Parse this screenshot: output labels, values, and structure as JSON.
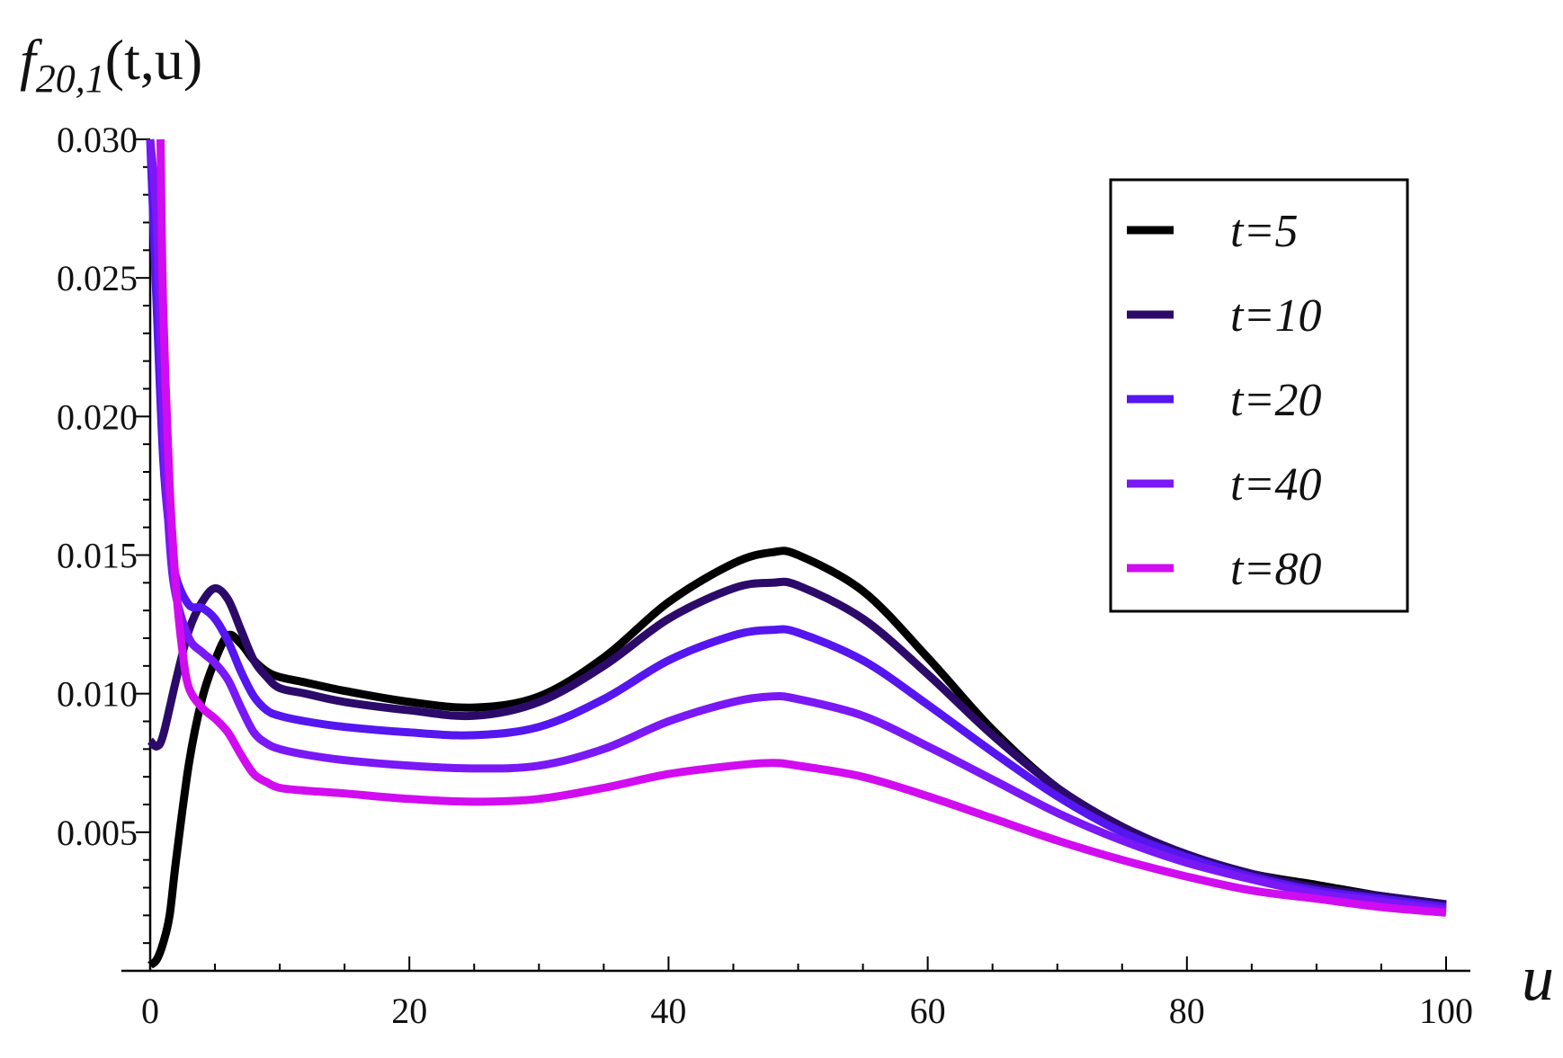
{
  "chart_data": {
    "type": "line",
    "title": "",
    "ylabel": "f20,1(t,u)",
    "ylabel_parts": {
      "base": "f",
      "sub": "20,1",
      "args": "(t,u)"
    },
    "xlabel": "u",
    "xlim": [
      0,
      100
    ],
    "ylim": [
      0,
      0.03
    ],
    "x_ticks": [
      0,
      20,
      40,
      60,
      80,
      100
    ],
    "x_tick_labels": [
      "0",
      "20",
      "40",
      "60",
      "80",
      "100"
    ],
    "y_ticks": [
      0.005,
      0.01,
      0.015,
      0.02,
      0.025,
      0.03
    ],
    "y_tick_labels": [
      "0.005",
      "0.010",
      "0.015",
      "0.020",
      "0.025",
      "0.030"
    ],
    "legend_position": "top-right",
    "series": [
      {
        "name": "t=5",
        "color": "#000000",
        "x": [
          0,
          0.5,
          1,
          1.5,
          2,
          3,
          4,
          5,
          6,
          7,
          8,
          9,
          10,
          12,
          15,
          20,
          25,
          30,
          35,
          40,
          45,
          48,
          50,
          55,
          60,
          65,
          70,
          75,
          80,
          85,
          90,
          95,
          100
        ],
        "y": [
          0.0002,
          0.0004,
          0.001,
          0.002,
          0.004,
          0.0075,
          0.0098,
          0.0112,
          0.0121,
          0.0118,
          0.0112,
          0.0108,
          0.0106,
          0.0104,
          0.0101,
          0.0097,
          0.0095,
          0.0099,
          0.0113,
          0.0133,
          0.0147,
          0.0151,
          0.015,
          0.0137,
          0.0113,
          0.0087,
          0.0066,
          0.0052,
          0.0042,
          0.0035,
          0.0031,
          0.0027,
          0.0024
        ]
      },
      {
        "name": "t=10",
        "color": "#2c0a6a",
        "x": [
          0,
          0.5,
          1,
          2,
          3,
          4,
          5,
          6,
          7,
          8,
          9,
          10,
          12,
          15,
          20,
          25,
          30,
          35,
          40,
          45,
          48,
          50,
          55,
          60,
          65,
          70,
          75,
          80,
          85,
          90,
          95,
          100
        ],
        "y": [
          0.0083,
          0.0081,
          0.0085,
          0.0105,
          0.0123,
          0.0133,
          0.0138,
          0.0134,
          0.0123,
          0.0112,
          0.0106,
          0.0102,
          0.01,
          0.0097,
          0.0094,
          0.0092,
          0.0097,
          0.011,
          0.0127,
          0.0138,
          0.014,
          0.0139,
          0.0127,
          0.0107,
          0.0085,
          0.0066,
          0.0052,
          0.0042,
          0.0035,
          0.003,
          0.0027,
          0.0024
        ]
      },
      {
        "name": "t=20",
        "color": "#5516f0",
        "x": [
          0,
          0.5,
          1,
          1.5,
          2,
          3,
          4,
          5,
          6,
          7,
          8,
          9,
          10,
          12,
          15,
          20,
          25,
          30,
          35,
          40,
          45,
          48,
          50,
          55,
          60,
          65,
          70,
          75,
          80,
          85,
          90,
          95,
          100
        ],
        "y": [
          0.03,
          0.024,
          0.0185,
          0.0158,
          0.0142,
          0.0132,
          0.0131,
          0.0127,
          0.0119,
          0.0108,
          0.0099,
          0.0094,
          0.0092,
          0.009,
          0.0088,
          0.0086,
          0.0085,
          0.0088,
          0.0098,
          0.0112,
          0.0121,
          0.0123,
          0.0122,
          0.0112,
          0.0096,
          0.0079,
          0.0063,
          0.005,
          0.0041,
          0.0034,
          0.0029,
          0.0026,
          0.0023
        ]
      },
      {
        "name": "t=40",
        "color": "#7a18f6",
        "x": [
          0,
          0.5,
          1,
          1.5,
          2,
          3,
          4,
          5,
          6,
          7,
          8,
          9,
          10,
          12,
          15,
          20,
          25,
          30,
          35,
          40,
          45,
          48,
          50,
          55,
          60,
          65,
          70,
          75,
          80,
          85,
          90,
          95,
          100
        ],
        "y": [
          0.03,
          0.027,
          0.02,
          0.0155,
          0.0135,
          0.012,
          0.0115,
          0.0111,
          0.0105,
          0.0095,
          0.0086,
          0.0082,
          0.008,
          0.0078,
          0.0076,
          0.0074,
          0.0073,
          0.0074,
          0.008,
          0.009,
          0.0097,
          0.0099,
          0.0098,
          0.0092,
          0.0081,
          0.0069,
          0.0057,
          0.0047,
          0.0039,
          0.0033,
          0.0028,
          0.0025,
          0.0022
        ]
      },
      {
        "name": "t=80",
        "color": "#d10cf0",
        "x": [
          0.8,
          1,
          1.5,
          2,
          2.5,
          3,
          4,
          5,
          6,
          7,
          8,
          9,
          10,
          12,
          15,
          20,
          25,
          30,
          35,
          40,
          45,
          48,
          50,
          55,
          60,
          65,
          70,
          75,
          80,
          85,
          90,
          95,
          100
        ],
        "y": [
          0.03,
          0.024,
          0.0175,
          0.0138,
          0.0115,
          0.0102,
          0.0095,
          0.0091,
          0.0086,
          0.0078,
          0.0071,
          0.0068,
          0.0066,
          0.0065,
          0.0064,
          0.0062,
          0.0061,
          0.0062,
          0.0066,
          0.0071,
          0.0074,
          0.0075,
          0.0074,
          0.007,
          0.0063,
          0.0055,
          0.0047,
          0.004,
          0.0034,
          0.0029,
          0.0026,
          0.0023,
          0.0021
        ]
      }
    ]
  }
}
